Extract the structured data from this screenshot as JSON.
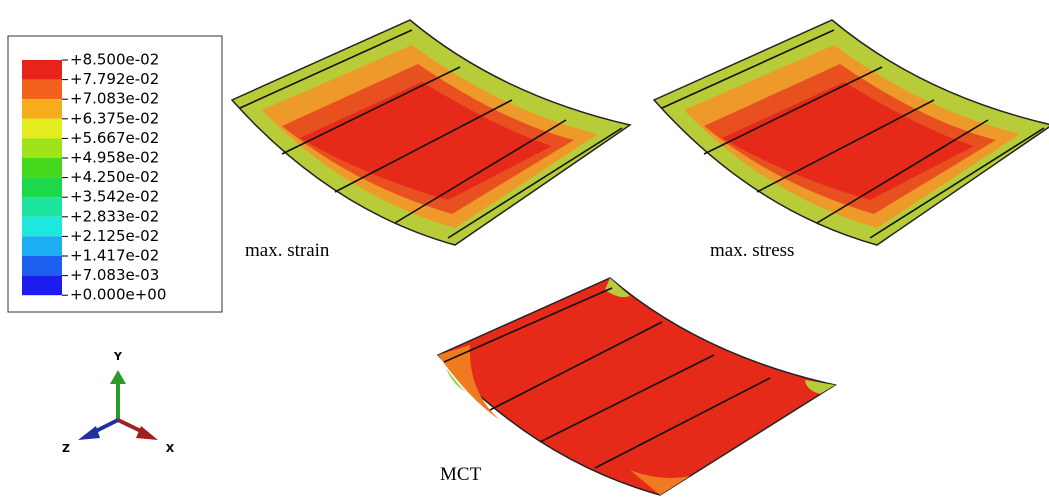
{
  "legend": {
    "labels": [
      "+8.500e-02",
      "+7.792e-02",
      "+7.083e-02",
      "+6.375e-02",
      "+5.667e-02",
      "+4.958e-02",
      "+4.250e-02",
      "+3.542e-02",
      "+2.833e-02",
      "+2.125e-02",
      "+1.417e-02",
      "+7.083e-03",
      "+0.000e+00"
    ],
    "colors": [
      "#e8231c",
      "#f2611e",
      "#f5ad1c",
      "#e3ec1c",
      "#9ee31c",
      "#46d81c",
      "#1cd84a",
      "#1ce3a0",
      "#1ce8e0",
      "#1caef0",
      "#1c5ff0",
      "#1c1cf0"
    ]
  },
  "panels": [
    {
      "label": "max. strain"
    },
    {
      "label": "max. stress"
    },
    {
      "label": "MCT"
    }
  ],
  "triad": {
    "y": "Y",
    "z": "Z",
    "x": "X"
  }
}
